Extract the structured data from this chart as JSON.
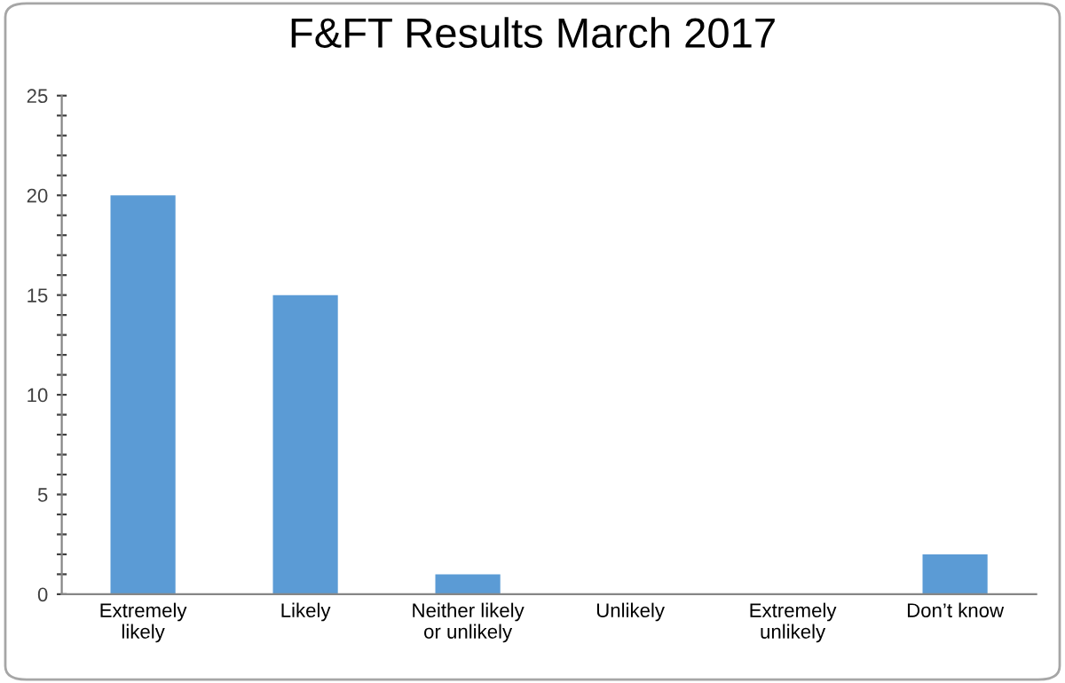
{
  "chart_data": {
    "type": "bar",
    "title": "F&FT Results March 2017",
    "categories": [
      "Extremely\nlikely",
      "Likely",
      "Neither likely\nor unlikely",
      "Unlikely",
      "Extremely\nunlikely",
      "Don’t know"
    ],
    "values": [
      20,
      15,
      1,
      0,
      0,
      2
    ],
    "color": "#5b9bd5",
    "ylim": [
      0,
      25
    ],
    "yticks": [
      0,
      {
        "value": 1,
        "label": null
      },
      {
        "value": 2,
        "label": null
      },
      {
        "value": 3,
        "label": null
      },
      {
        "value": 4,
        "label": null
      },
      5,
      {
        "value": 6,
        "label": null
      },
      {
        "value": 7,
        "label": null
      },
      {
        "value": 8,
        "label": null
      },
      {
        "value": 9,
        "label": null
      },
      10,
      {
        "value": 11,
        "label": null
      },
      {
        "value": 12,
        "label": null
      },
      {
        "value": 13,
        "label": null
      },
      {
        "value": 14,
        "label": null
      },
      15,
      {
        "value": 16,
        "label": null
      },
      {
        "value": 17,
        "label": null
      },
      {
        "value": 18,
        "label": null
      },
      {
        "value": 19,
        "label": null
      },
      20,
      {
        "value": 21,
        "label": null
      },
      {
        "value": 22,
        "label": null
      },
      {
        "value": 23,
        "label": null
      },
      {
        "value": 24,
        "label": null
      },
      25
    ],
    "grid": false,
    "legend": false
  }
}
